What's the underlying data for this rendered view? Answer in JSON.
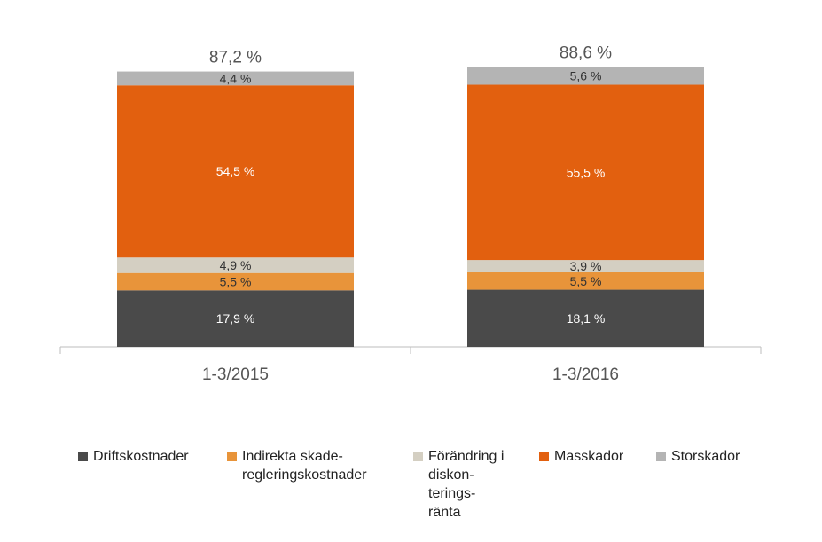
{
  "chart_data": {
    "type": "bar",
    "stacked": true,
    "categories": [
      "1-3/2015",
      "1-3/2016"
    ],
    "totals": [
      "87,2 %",
      "88,6 %"
    ],
    "series": [
      {
        "name": "Driftskostnader",
        "color": "#4a4a4a",
        "values": [
          17.9,
          18.1
        ],
        "labels": [
          "17,9 %",
          "18,1 %"
        ],
        "label_color": "#ffffff"
      },
      {
        "name": "Indirekta skade-\nregleringskostnader",
        "color": "#e8943a",
        "values": [
          5.5,
          5.5
        ],
        "labels": [
          "5,5 %",
          "5,5 %"
        ],
        "label_color": "#333333"
      },
      {
        "name": "Förändring i\ndiskon-\nterings-\nränta",
        "color": "#d4cfc2",
        "values": [
          4.9,
          3.9
        ],
        "labels": [
          "4,9 %",
          "3,9 %"
        ],
        "label_color": "#333333"
      },
      {
        "name": "Masskador",
        "color": "#e2600f",
        "values": [
          54.5,
          55.5
        ],
        "labels": [
          "54,5 %",
          "55,5 %"
        ],
        "label_color": "#ffffff"
      },
      {
        "name": "Storskador",
        "color": "#b4b4b4",
        "values": [
          4.4,
          5.6
        ],
        "labels": [
          "4,4 %",
          "5,6 %"
        ],
        "label_color": "#333333"
      }
    ],
    "legend_position": "bottom",
    "grid": false
  }
}
